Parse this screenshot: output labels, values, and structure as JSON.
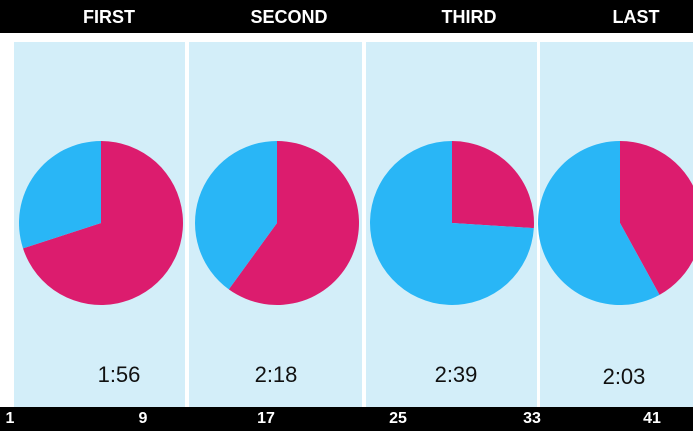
{
  "colors": {
    "panel_bg": "#d3eef9",
    "slice_a": "#dc1c6e",
    "slice_b": "#29b6f6",
    "bar_bg": "#000000"
  },
  "chart_data": {
    "type": "pie",
    "panels": [
      {
        "label": "FIRST",
        "time": "1:56",
        "slices": [
          {
            "color": "#dc1c6e",
            "value": 70
          },
          {
            "color": "#29b6f6",
            "value": 30
          }
        ]
      },
      {
        "label": "SECOND",
        "time": "2:18",
        "slices": [
          {
            "color": "#dc1c6e",
            "value": 60
          },
          {
            "color": "#29b6f6",
            "value": 40
          }
        ]
      },
      {
        "label": "THIRD",
        "time": "2:39",
        "slices": [
          {
            "color": "#dc1c6e",
            "value": 26
          },
          {
            "color": "#29b6f6",
            "value": 74
          }
        ]
      },
      {
        "label": "LAST",
        "time": "2:03",
        "slices": [
          {
            "color": "#dc1c6e",
            "value": 42
          },
          {
            "color": "#29b6f6",
            "value": 58
          }
        ]
      }
    ],
    "x_ticks": [
      "1",
      "9",
      "17",
      "25",
      "33",
      "41"
    ]
  }
}
